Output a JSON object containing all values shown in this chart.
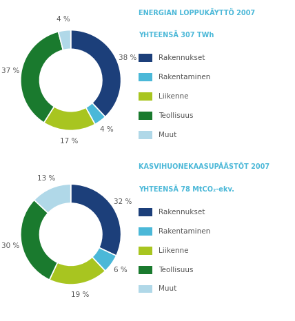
{
  "chart1": {
    "title_line1": "ENERGIAN LOPPUKÄYTTÖ 2007",
    "title_line2": "YHTEENSÄ 307 TWh",
    "values": [
      38,
      4,
      17,
      37,
      4
    ],
    "labels": [
      "38 %",
      "4 %",
      "17 %",
      "37 %",
      "4 %"
    ],
    "colors": [
      "#1c3f7a",
      "#4bb8d8",
      "#a8c520",
      "#1a7a2e",
      "#b0d8e8"
    ],
    "legend_labels": [
      "Rakennukset",
      "Rakentaminen",
      "Liikenne",
      "Teollisuus",
      "Muut"
    ]
  },
  "chart2": {
    "title_line1": "KASVIHUONEKAASUPÄÄSTÖT 2007",
    "title_line2": "YHTEENSÄ 78 MtCO₂-ekv.",
    "values": [
      32,
      6,
      19,
      30,
      13
    ],
    "labels": [
      "32 %",
      "6 %",
      "19 %",
      "30 %",
      "13 %"
    ],
    "colors": [
      "#1c3f7a",
      "#4bb8d8",
      "#a8c520",
      "#1a7a2e",
      "#b0d8e8"
    ],
    "legend_labels": [
      "Rakennukset",
      "Rakentaminen",
      "Liikenne",
      "Teollisuus",
      "Muut"
    ]
  },
  "title_color": "#4bb8d8",
  "bg_color": "#ffffff",
  "label_color": "#555555",
  "label_fontsize": 7.5,
  "title_fontsize": 7.0,
  "legend_fontsize": 7.5,
  "legend_text_color": "#555555",
  "donut_width": 0.38
}
